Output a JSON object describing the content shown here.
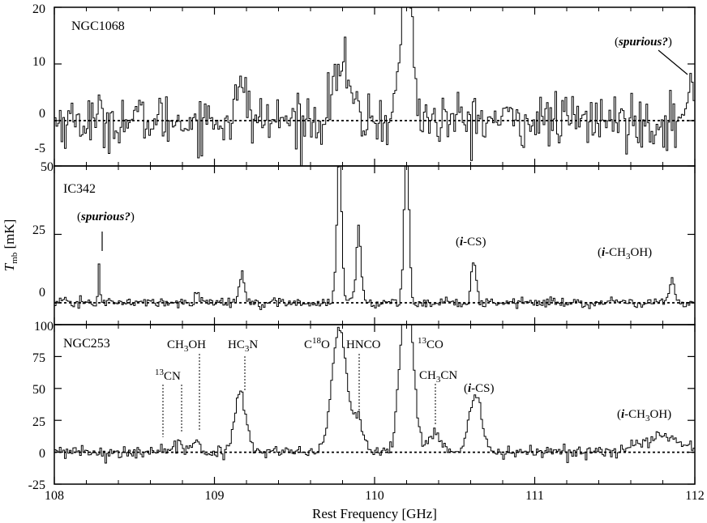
{
  "chart_data": {
    "type": "line",
    "style": "step spectrum, three stacked panels sharing the frequency axis",
    "xlabel": "Rest Frequency [GHz]",
    "ylabel_main": "T",
    "ylabel_sub": "mb",
    "ylabel_unit": "[mK]",
    "xlim": [
      108,
      112
    ],
    "x_ticks": [
      "108",
      "109",
      "110",
      "111",
      "112"
    ],
    "baseline": "dotted line at 0 mK in each panel",
    "line_color": "#000000",
    "panels": [
      {
        "name": "NGC1068",
        "ylim": [
          -8,
          20
        ],
        "y_ticks": [
          "20",
          "10",
          "0"
        ],
        "extra_tick_label": "-5",
        "noise_sigma": 2.3,
        "features": [
          {
            "freq": 109.17,
            "peak": 5.5,
            "width": 0.035
          },
          {
            "freq": 109.79,
            "peak": 10,
            "width": 0.05
          },
          {
            "freq": 110.2,
            "peak": 28,
            "width": 0.035
          },
          {
            "freq": 111.98,
            "peak": 7,
            "width": 0.015
          }
        ],
        "labels": [
          {
            "text": "(spurious?)",
            "freq": 111.7,
            "y": 18
          }
        ]
      },
      {
        "name": "IC342",
        "ylim": [
          -8,
          50
        ],
        "y_ticks": [
          "50",
          "25",
          "0"
        ],
        "noise_sigma": 0.9,
        "features": [
          {
            "freq": 108.28,
            "peak": 15,
            "width": 0.006
          },
          {
            "freq": 108.89,
            "peak": 5,
            "width": 0.012
          },
          {
            "freq": 109.17,
            "peak": 11,
            "width": 0.015
          },
          {
            "freq": 109.78,
            "peak": 55,
            "width": 0.015
          },
          {
            "freq": 109.9,
            "peak": 27,
            "width": 0.015
          },
          {
            "freq": 110.2,
            "peak": 60,
            "width": 0.015
          },
          {
            "freq": 110.62,
            "peak": 16,
            "width": 0.015
          },
          {
            "freq": 111.86,
            "peak": 9,
            "width": 0.015
          }
        ],
        "labels": [
          {
            "text": "(spurious?)",
            "freq": 108.28,
            "y": 36
          },
          {
            "text": "(i-CS)",
            "freq": 110.62,
            "y": 26
          },
          {
            "text": "(i-CH3OH)",
            "freq": 111.86,
            "y": 19
          }
        ]
      },
      {
        "name": "NGC253",
        "ylim": [
          -25,
          100
        ],
        "y_ticks": [
          "100",
          "75",
          "50",
          "25",
          "0",
          "-25"
        ],
        "noise_sigma": 2.4,
        "features": [
          {
            "freq": 108.65,
            "peak": 4,
            "width": 0.02
          },
          {
            "freq": 108.78,
            "peak": 8,
            "width": 0.02
          },
          {
            "freq": 108.89,
            "peak": 8,
            "width": 0.025
          },
          {
            "freq": 109.16,
            "peak": 45,
            "width": 0.035
          },
          {
            "freq": 109.78,
            "peak": 98,
            "width": 0.045
          },
          {
            "freq": 109.9,
            "peak": 26,
            "width": 0.03
          },
          {
            "freq": 110.2,
            "peak": 130,
            "width": 0.04
          },
          {
            "freq": 110.37,
            "peak": 13,
            "width": 0.04
          },
          {
            "freq": 110.63,
            "peak": 45,
            "width": 0.04
          },
          {
            "freq": 111.8,
            "peak": 12,
            "width": 0.12
          }
        ],
        "labels": [
          {
            "text": "13CN",
            "freq": 108.65,
            "y": 39
          },
          {
            "text": "CH3OH",
            "freq": 108.89,
            "y": 61
          },
          {
            "text": "HC3N",
            "freq": 109.17,
            "y": 61
          },
          {
            "text": "C18O",
            "freq": 109.78,
            "y": 61
          },
          {
            "text": "HNCO",
            "freq": 109.9,
            "y": 61
          },
          {
            "text": "13CO",
            "freq": 110.2,
            "y": 61
          },
          {
            "text": "CH3CN",
            "freq": 110.38,
            "y": 37
          },
          {
            "text": "(i-CS)",
            "freq": 110.63,
            "y": 34
          },
          {
            "text": "(i-CH3OH)",
            "freq": 111.8,
            "y": 17
          }
        ]
      }
    ]
  }
}
